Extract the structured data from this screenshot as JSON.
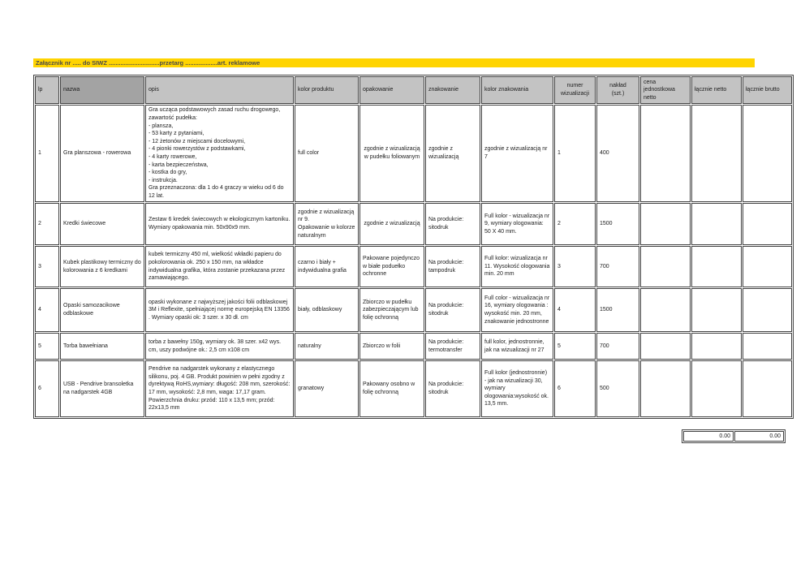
{
  "attachment_bar": {
    "text": "Załącznik nr ..... do SIWZ ..............................przetarg ...................art. reklamowe",
    "background": "#ffd400"
  },
  "colors": {
    "header_background": "#c3c3c3",
    "header_nazwa_background": "#a3a3a3",
    "highlight_yellow": "#ffd400",
    "border": "#424242"
  },
  "table": {
    "columns": [
      {
        "key": "lp",
        "label": "lp"
      },
      {
        "key": "nazwa",
        "label": "nazwa"
      },
      {
        "key": "opis",
        "label": "opis"
      },
      {
        "key": "kolor_produktu",
        "label": "kolor produktu"
      },
      {
        "key": "opakowanie",
        "label": "opakowanie"
      },
      {
        "key": "znakowanie",
        "label": "znakowanie"
      },
      {
        "key": "kolor_znakowania",
        "label": "kolor znakowania"
      },
      {
        "key": "numer_wizualizacji",
        "label": "numer\nwizualizacji"
      },
      {
        "key": "naklad",
        "label": "nakład\n(szt.)"
      },
      {
        "key": "cena_jednostkowa",
        "label": "cena\njednostkowa\nnetto"
      },
      {
        "key": "lacznie_netto",
        "label": "łącznie netto"
      },
      {
        "key": "lacznie_brutto",
        "label": "łącznie brutto"
      }
    ],
    "rows": [
      {
        "lp": "1",
        "nazwa": "Gra planszowa - rowerowa",
        "opis": "Gra ucząca podstawowych zasad ruchu drogowego, zawartość pudełka:\n- plansza,\n- 53 karty z pytaniami,\n- 12 żetonów z miejscami docelowymi,\n- 4 pionki rowerzystów z podstawkami,\n- 4 karty rowerowe,\n- karta bezpieczeństwa,\n- kostka do gry,\n- instrukcja.\nGra przeznaczona: dla 1 do 4 graczy w wieku od 6 do 12 lat.",
        "kolor_produktu": "full color",
        "opakowanie": "zgodnie z wizualizacją w pudełku foliowanym",
        "znakowanie": "zgodnie z wizualizacją",
        "kolor_znakowania": "zgodnie z wizualizacją nr 7",
        "numer_wizualizacji": "1",
        "naklad": "400",
        "cena_jednostkowa": "",
        "lacznie_netto": "",
        "lacznie_brutto": ""
      },
      {
        "lp": "2",
        "nazwa": "Kredki świecowe",
        "opis": "Zestaw 6 kredek świecowych w ekologicznym kartoniku. Wymiary opakowania min. 50x90x9 mm.",
        "kolor_produktu": "zgodnie z wizualizacją nr 9.\nOpakowanie w kolorze naturalnym",
        "opakowanie": "zgodnie z wizualizacją",
        "znakowanie": "Na produkcie: sitodruk",
        "kolor_znakowania": "Full kolor - wizualizacja nr 9, wymiary ologowania: 50 X 40 mm.",
        "numer_wizualizacji": "2",
        "naklad": "1500",
        "cena_jednostkowa": "",
        "lacznie_netto": "",
        "lacznie_brutto": ""
      },
      {
        "lp": "3",
        "nazwa": "Kubek plastikowy termiczny do kolorowania z 6 kredkami",
        "opis": "kubek termiczny 450 ml, wielkość wkładki papieru do pokolorowania  ok. 250 x 150 mm, na wkładce indywidualna grafika, która zostanie przekazana przez zamawiającego.",
        "kolor_produktu": "czarno i biały + indywidualna grafia",
        "opakowanie": "Pakowane pojedynczo w białe poduełko ochronne",
        "znakowanie": "Na produkcie: tampodruk",
        "kolor_znakowania": "Full kolor: wizualizacja nr 11. Wysokość ologowania min. 20 mm",
        "numer_wizualizacji": "3",
        "naklad": "700",
        "cena_jednostkowa": "",
        "lacznie_netto": "",
        "lacznie_brutto": ""
      },
      {
        "lp": "4",
        "nazwa": "Opaski samozacikowe odblaskowe",
        "opis": "opaski wykonane z najwyższej jakości folii odblaskowej 3M i Reflexite, spełniającej normę europejską EN 13356 . Wymiary opaski ok: 3 szer. x 30 dł.  cm",
        "kolor_produktu": "biały, odblaskowy",
        "opakowanie": "Zbiorczo w pudełku zabezpieczającym lub folię ochronną",
        "znakowanie": "Na produkcie: sitodruk",
        "kolor_znakowania": "Full color - wizualizacja nr 16, wymiary ologowania : wysokość min. 20 mm, znakowanie jednostronne",
        "numer_wizualizacji": "4",
        "naklad": "1500",
        "cena_jednostkowa": "",
        "lacznie_netto": "",
        "lacznie_brutto": ""
      },
      {
        "lp": "5",
        "nazwa": "Torba bawełniana",
        "opis": "torba z bawełny 150g, wymiary ok. 38 szer. x42 wys. cm, uszy podwójne ok.: 2,5 cm x108 cm",
        "kolor_produktu": "naturalny",
        "opakowanie": "Zbiorczo w folii",
        "znakowanie": "Na produkcie: termotransfer",
        "kolor_znakowania": "full kolor, jednostronnie, jak na wizualizacji nr 27",
        "numer_wizualizacji": "5",
        "naklad": "700",
        "cena_jednostkowa": "",
        "lacznie_netto": "",
        "lacznie_brutto": ""
      },
      {
        "lp": "6",
        "nazwa": "USB - Pendrive bransoletka na nadgarstek 4GB",
        "opis": "Pendrive na nadgarstek wykonany z elastycznego silikonu, poj. 4 GB. Produkt powinien w pełni zgodny z dyrektywą RoHS,wymiary: długość: 208 mm, szerokość: 17 mm, wysokość: 2,8 mm, waga: 17,17 gram.\nPowierzchnia druku: przód: 110 x 13,5 mm; przód: 22x13,5 mm",
        "kolor_produktu": "granatowy",
        "opakowanie": "Pakowany osobno w folię ochronną",
        "znakowanie": "Na produkcie: sitodruk",
        "kolor_znakowania": "Full kolor (jednostronnie) - jak na wizualizacji 30, wymiary ologowania:wysokość ok. 13,5 mm.",
        "numer_wizualizacji": "6",
        "naklad": "500",
        "cena_jednostkowa": "",
        "lacznie_netto": "",
        "lacznie_brutto": ""
      }
    ],
    "totals": {
      "netto": "0.00",
      "brutto": "0.00"
    }
  }
}
